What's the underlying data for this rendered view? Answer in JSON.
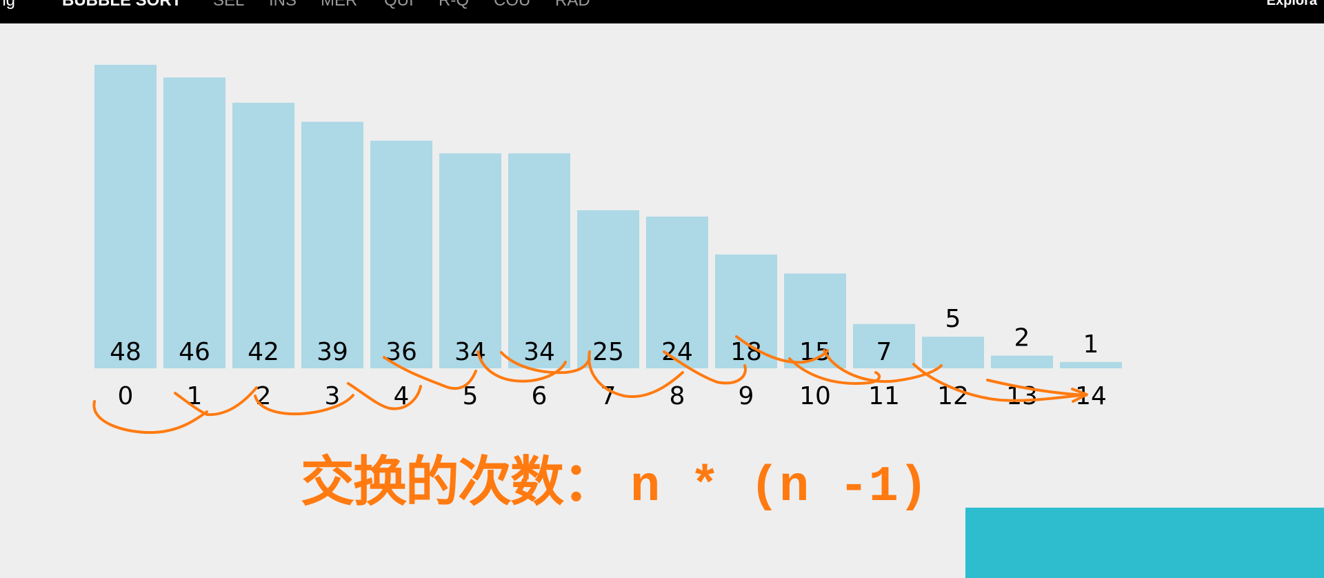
{
  "nav": {
    "left_stub": "ing",
    "items": [
      "BUBBLE SORT",
      "SEL",
      "INS",
      "MER",
      "QUI",
      "R-Q",
      "COU",
      "RAD"
    ],
    "active_index": 0,
    "right_label": "Explora"
  },
  "chart_data": {
    "type": "bar",
    "categories": [
      "0",
      "1",
      "2",
      "3",
      "4",
      "5",
      "6",
      "7",
      "8",
      "9",
      "10",
      "11",
      "12",
      "13",
      "14"
    ],
    "values": [
      48,
      46,
      42,
      39,
      36,
      34,
      34,
      25,
      24,
      18,
      15,
      7,
      5,
      2,
      1
    ],
    "ylim": [
      0,
      48
    ],
    "bar_color": "#add8e6",
    "label_color": "#000000"
  },
  "annotation": {
    "formula_cn": "交换的次数：",
    "formula_math": "n * (n -1)",
    "color": "#ff7a10"
  },
  "colors": {
    "background": "#eeeeee",
    "topbar": "#000000",
    "accent_block": "#2ebccf"
  }
}
